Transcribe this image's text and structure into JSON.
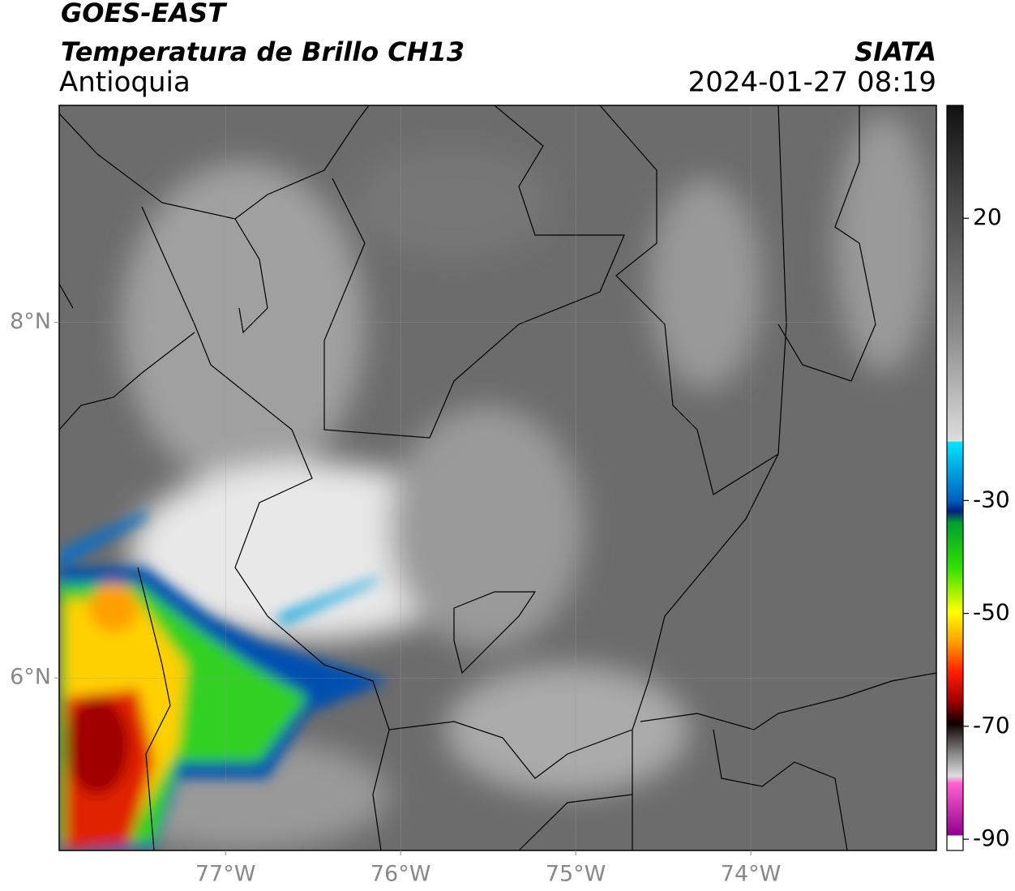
{
  "header": {
    "title": "GOES-EAST",
    "subtitle": "Temperatura de Brillo CH13",
    "region": "Antioquia",
    "source": "SIATA",
    "datetime": "2024-01-27 08:19"
  },
  "map": {
    "xlim": [
      -77.95,
      -72.94
    ],
    "ylim": [
      5.03,
      9.22
    ],
    "grid": true,
    "xticks": [
      {
        "value": -77,
        "label": "77°W"
      },
      {
        "value": -76,
        "label": "76°W"
      },
      {
        "value": -75,
        "label": "75°W"
      },
      {
        "value": -74,
        "label": "74°W"
      }
    ],
    "yticks": [
      {
        "value": 8,
        "label": "8°N"
      },
      {
        "value": 6,
        "label": "6°N"
      }
    ]
  },
  "colorbar": {
    "clim": [
      -92,
      40
    ],
    "ticks": [
      20,
      -30,
      -50,
      -70,
      -90
    ]
  }
}
